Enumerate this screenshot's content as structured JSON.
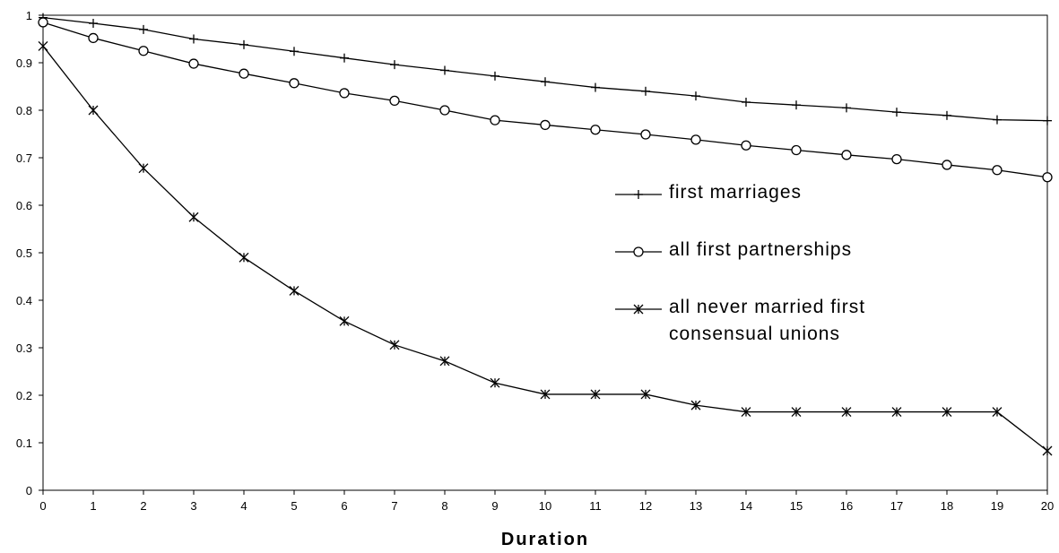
{
  "chart_data": {
    "type": "line",
    "x_label": "Duration",
    "x": [
      0,
      1,
      2,
      3,
      4,
      5,
      6,
      7,
      8,
      9,
      10,
      11,
      12,
      13,
      14,
      15,
      16,
      17,
      18,
      19,
      20
    ],
    "xlim": [
      0,
      20
    ],
    "xticks": [
      0,
      1,
      2,
      3,
      4,
      5,
      6,
      7,
      8,
      9,
      10,
      11,
      12,
      13,
      14,
      15,
      16,
      17,
      18,
      19,
      20
    ],
    "ylim": [
      0,
      1
    ],
    "yticks": [
      0,
      0.1,
      0.2,
      0.3,
      0.4,
      0.5,
      0.6,
      0.7,
      0.8,
      0.9,
      1
    ],
    "grid": false,
    "series": [
      {
        "name": "first marriages",
        "color": "#000000",
        "marker": "plus",
        "values": [
          0.995,
          0.983,
          0.97,
          0.95,
          0.938,
          0.924,
          0.91,
          0.896,
          0.884,
          0.872,
          0.86,
          0.848,
          0.84,
          0.83,
          0.817,
          0.811,
          0.805,
          0.796,
          0.789,
          0.78,
          0.778
        ]
      },
      {
        "name": "all first partnerships",
        "color": "#000000",
        "marker": "circle",
        "values": [
          0.985,
          0.952,
          0.925,
          0.898,
          0.877,
          0.857,
          0.836,
          0.82,
          0.8,
          0.779,
          0.769,
          0.759,
          0.749,
          0.738,
          0.726,
          0.716,
          0.706,
          0.697,
          0.685,
          0.674,
          0.659
        ]
      },
      {
        "name": "all never married first consensual unions",
        "color": "#000000",
        "marker": "asterisk",
        "values": [
          0.935,
          0.8,
          0.678,
          0.575,
          0.49,
          0.42,
          0.356,
          0.306,
          0.272,
          0.226,
          0.202,
          0.202,
          0.202,
          0.179,
          0.165,
          0.165,
          0.165,
          0.165,
          0.165,
          0.165,
          0.083
        ]
      }
    ]
  }
}
